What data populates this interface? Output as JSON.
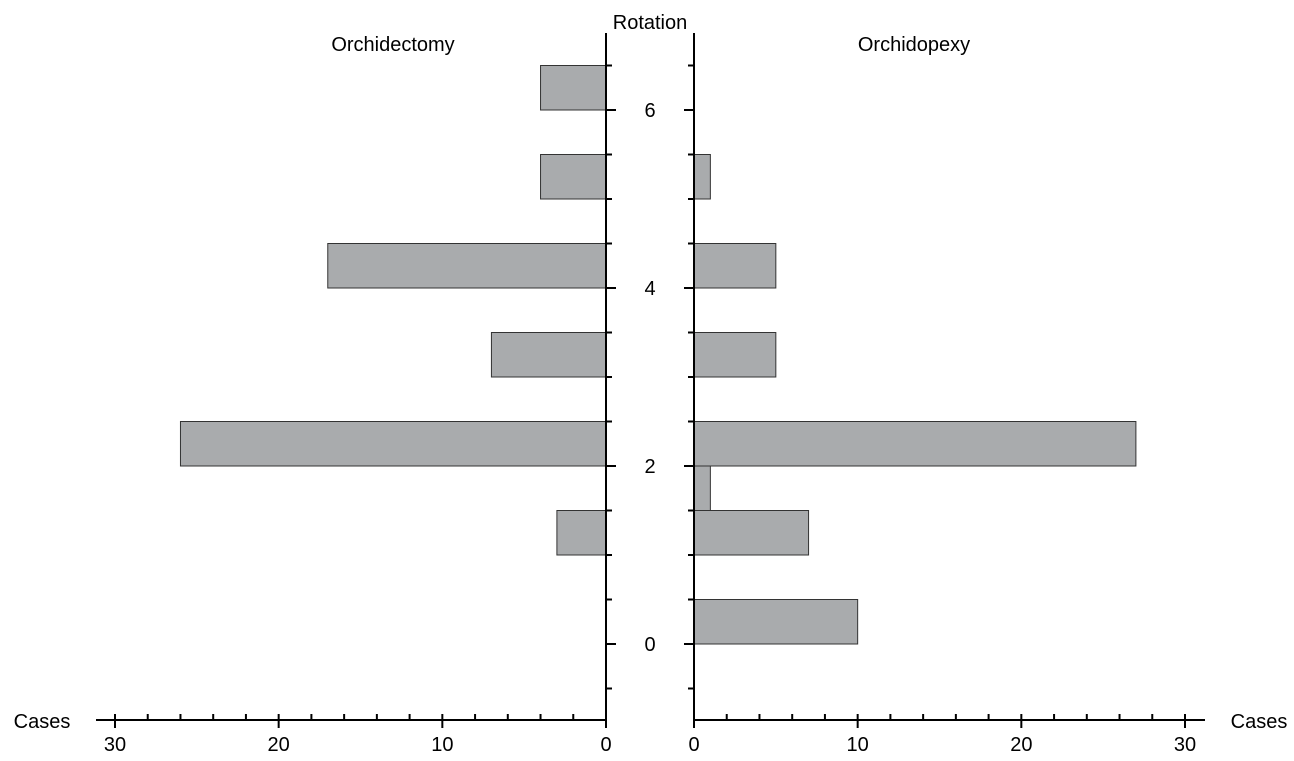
{
  "chart_data": {
    "type": "bar",
    "orientation": "horizontal",
    "layout": "butterfly",
    "bar_color": "#a9abad",
    "bar_edge_color": "#333333",
    "y_axis": {
      "label": "Rotation",
      "ylim": [
        -0.85,
        6.85
      ],
      "ticks": [
        "0",
        "2",
        "4",
        "6"
      ],
      "tick_values": [
        0,
        2,
        4,
        6
      ],
      "minor_tick_step": 0.5
    },
    "left": {
      "title": "Orchidectomy",
      "xlabel": "Cases",
      "xlim": [
        0,
        30
      ],
      "direction": "reversed",
      "ticks": [
        "30",
        "20",
        "10",
        "0"
      ],
      "tick_values": [
        30,
        20,
        10,
        0
      ],
      "minor_tick_step": 2,
      "bars": [
        {
          "y_start": 1.0,
          "y_end": 1.5,
          "value": 3
        },
        {
          "y_start": 2.0,
          "y_end": 2.5,
          "value": 26
        },
        {
          "y_start": 3.0,
          "y_end": 3.5,
          "value": 7
        },
        {
          "y_start": 4.0,
          "y_end": 4.5,
          "value": 17
        },
        {
          "y_start": 5.0,
          "y_end": 5.5,
          "value": 4
        },
        {
          "y_start": 6.0,
          "y_end": 6.5,
          "value": 4
        }
      ]
    },
    "right": {
      "title": "Orchidopexy",
      "xlabel": "Cases",
      "xlim": [
        0,
        30
      ],
      "direction": "normal",
      "ticks": [
        "0",
        "10",
        "20",
        "30"
      ],
      "tick_values": [
        0,
        10,
        20,
        30
      ],
      "minor_tick_step": 2,
      "bars": [
        {
          "y_start": 0.0,
          "y_end": 0.5,
          "value": 10
        },
        {
          "y_start": 1.0,
          "y_end": 1.5,
          "value": 7
        },
        {
          "y_start": 1.5,
          "y_end": 2.0,
          "value": 1
        },
        {
          "y_start": 2.0,
          "y_end": 2.5,
          "value": 27
        },
        {
          "y_start": 3.0,
          "y_end": 3.5,
          "value": 5
        },
        {
          "y_start": 4.0,
          "y_end": 4.5,
          "value": 5
        },
        {
          "y_start": 5.0,
          "y_end": 5.5,
          "value": 1
        }
      ]
    }
  }
}
